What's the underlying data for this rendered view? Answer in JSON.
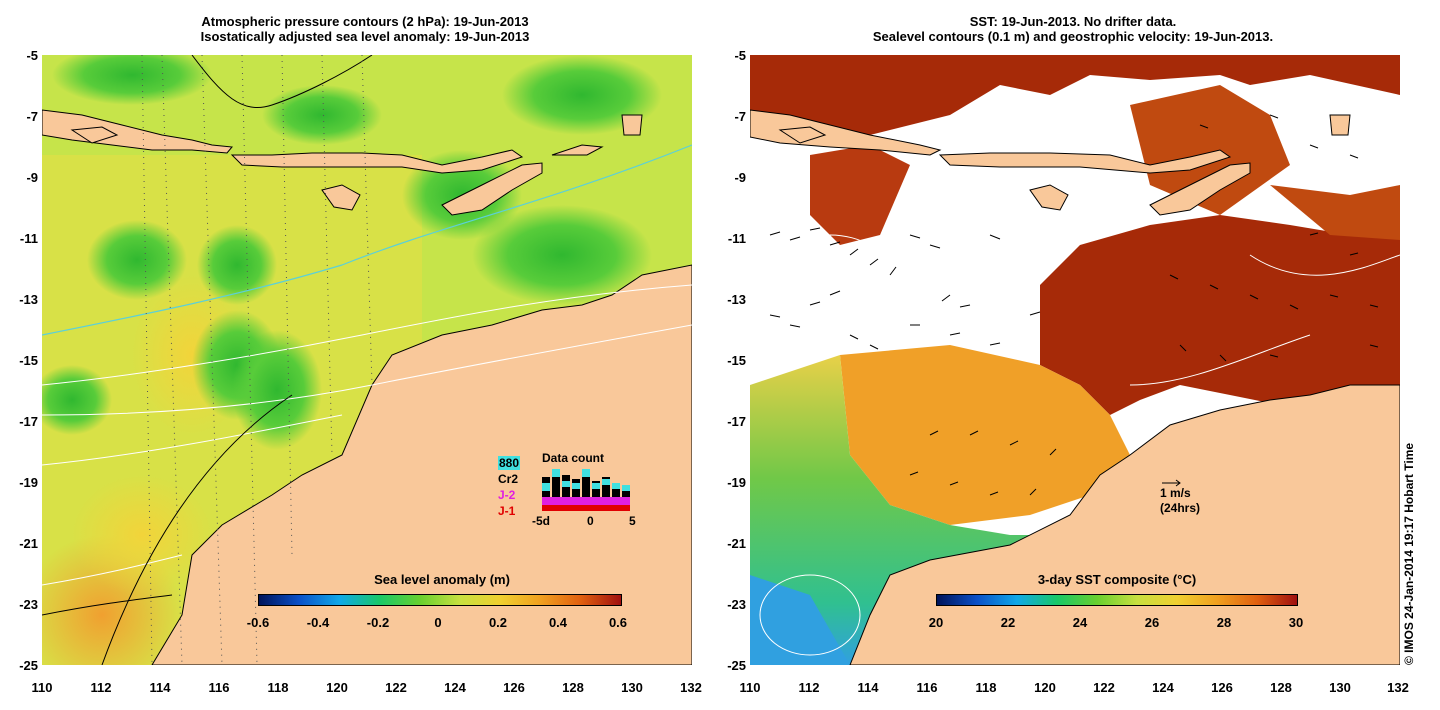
{
  "left_panel": {
    "title_line1": "Atmospheric pressure contours (2 hPa): 19-Jun-2013",
    "title_line2": "Isostatically adjusted sea level anomaly: 19-Jun-2013",
    "colorbar_label": "Sea level anomaly (m)",
    "colorbar_ticks": [
      "-0.6",
      "-0.4",
      "-0.2",
      "0",
      "0.2",
      "0.4",
      "0.6"
    ],
    "data_count": {
      "title": "Data count",
      "satellites": [
        "880",
        "Cr2",
        "J-2",
        "J-1"
      ],
      "satellite_colors": [
        "#40e0e0",
        "#000000",
        "#e020e0",
        "#e00000"
      ],
      "axis_ticks": [
        "-5d",
        "0",
        "5"
      ]
    }
  },
  "right_panel": {
    "title_line1": "SST: 19-Jun-2013. No drifter data.",
    "title_line2": "Sealevel contours (0.1 m) and geostrophic velocity: 19-Jun-2013.",
    "colorbar_label": "3-day SST composite (°C)",
    "colorbar_ticks": [
      "20",
      "22",
      "24",
      "26",
      "28",
      "30"
    ],
    "scale_arrow_label1": "1 m/s",
    "scale_arrow_label2": "(24hrs)"
  },
  "axes": {
    "y_ticks": [
      "-5",
      "-7",
      "-9",
      "-11",
      "-13",
      "-15",
      "-17",
      "-19",
      "-21",
      "-23",
      "-25"
    ],
    "x_ticks": [
      "110",
      "112",
      "114",
      "116",
      "118",
      "120",
      "122",
      "124",
      "126",
      "128",
      "130",
      "132"
    ]
  },
  "credit": "© IMOS 24-Jan-2014 19:17 Hobart Time",
  "colors": {
    "land": "#f9c89a",
    "sla_low": "#00209a",
    "sla_high": "#a01818",
    "sst_warm": "#a62a08"
  }
}
